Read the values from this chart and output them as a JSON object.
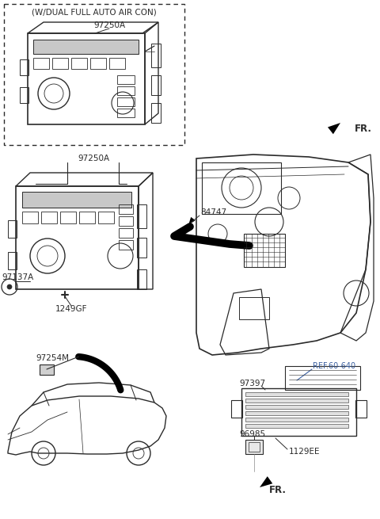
{
  "bg_color": "#ffffff",
  "lc": "#2a2a2a",
  "tc": "#2a2a2a",
  "ref_color": "#3a5fa0",
  "fig_width": 4.8,
  "fig_height": 6.55,
  "dpi": 100,
  "labels": {
    "top_title": "(W/DUAL FULL AUTO AIR CON)",
    "l_97250A_top": "97250A",
    "l_97250A_mid": "97250A",
    "l_84747": "84747",
    "l_97137A": "97137A",
    "l_1249GF": "1249GF",
    "l_97254M": "97254M",
    "l_97397": "97397",
    "l_96985": "96985",
    "l_1129EE": "1129EE",
    "l_ref": "REF.60-640",
    "l_fr_top": "FR.",
    "l_fr_bot": "FR."
  }
}
